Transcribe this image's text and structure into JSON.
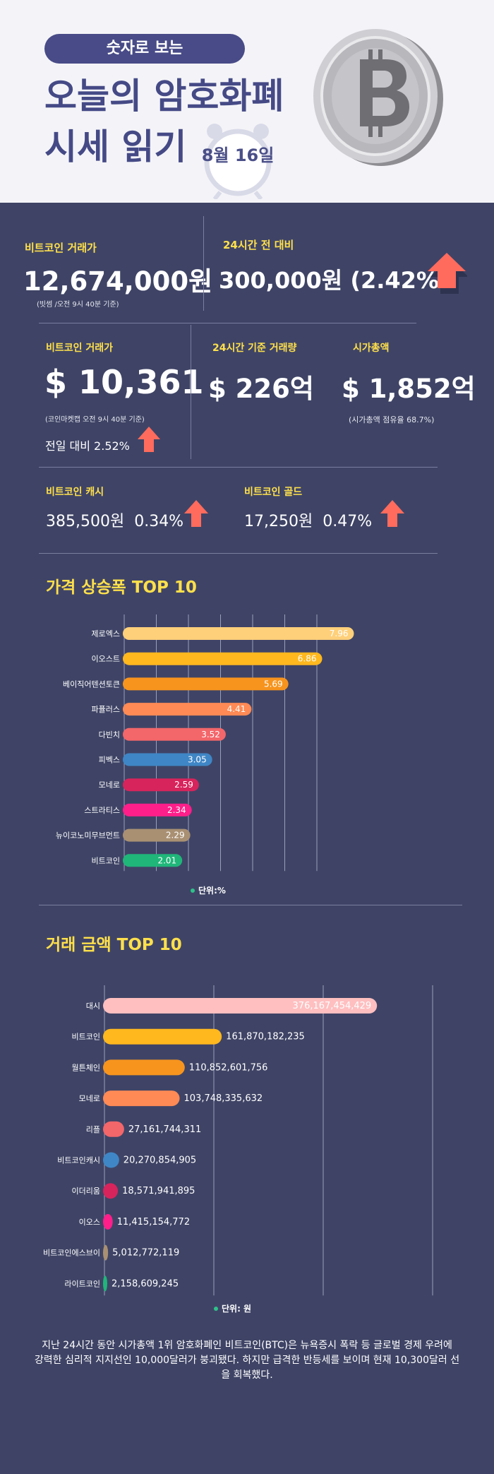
{
  "header": {
    "pill": "숫자로 보는",
    "title_line1": "오늘의 암호화폐",
    "title_line2": "시세 읽기",
    "date": "8월 16일"
  },
  "stats": {
    "krw_label": "비트코인 거래가",
    "krw_value": "12,674,000원",
    "krw_note": "(빗썸 /오전 9시 40분 기준)",
    "change_label": "24시간 전 대비",
    "change_value": "300,000원 (2.42%)",
    "usd_label": "비트코인 거래가",
    "usd_value": "$ 10,361",
    "usd_note": "(코인마켓캡 오전 9시 40분 기준)",
    "usd_change": "전일 대비 2.52%",
    "volume_label": "24시간 기준 거래량",
    "volume_value": "$ 226억",
    "mcap_label": "시가총액",
    "mcap_value": "$ 1,852억",
    "mcap_note": "(시가총액 점유율 68.7%)",
    "bch_label": "비트코인 캐시",
    "bch_value": "385,500원  0.34%",
    "btg_label": "비트코인 골드",
    "btg_value": "17,250원  0.47%"
  },
  "colors": {
    "accent": "#ffe04b",
    "up_arrow": "#ff6b5d",
    "bg": "#3f4466"
  },
  "chart_data": [
    {
      "type": "bar",
      "title": "가격 상승폭 TOP 10",
      "unit": "단위:%",
      "categories": [
        "제로엑스",
        "이오스트",
        "베이직어텐션토큰",
        "파퓰러스",
        "다빈치",
        "피벡스",
        "모네로",
        "스트라티스",
        "뉴이코노미무브먼트",
        "비트코인"
      ],
      "values": [
        7.96,
        6.86,
        5.69,
        4.41,
        3.52,
        3.05,
        2.59,
        2.34,
        2.29,
        2.01
      ],
      "labels": [
        "7.96",
        "6.86",
        "5.69",
        "4.41",
        "3.52",
        "3.05",
        "2.59",
        "2.34",
        "2.29",
        "2.01"
      ],
      "colors": [
        "#ffd07a",
        "#ffb81e",
        "#f7941d",
        "#ff8a55",
        "#f3666a",
        "#3f86c6",
        "#d7245c",
        "#ff1f8a",
        "#a99073",
        "#20b67a"
      ],
      "xlim": [
        0,
        9
      ],
      "grid": true
    },
    {
      "type": "bar",
      "title": "거래 금액 TOP 10",
      "unit": "단위: 원",
      "categories": [
        "대시",
        "비트코인",
        "월튼체인",
        "모네로",
        "리플",
        "비트코인캐시",
        "이더리움",
        "이오스",
        "비트코인에스브이",
        "라이트코인"
      ],
      "values": [
        376167454429,
        161870182235,
        110852601756,
        103748335632,
        27161744311,
        20270854905,
        18571941895,
        11415154772,
        5012772119,
        2158609245
      ],
      "labels": [
        "376,167,454,429",
        "161,870,182,235",
        "110,852,601,756",
        "103,748,335,632",
        "27,161,744,311",
        "20,270,854,905",
        "18,571,941,895",
        "11,415,154,772",
        "5,012,772,119",
        "2,158,609,245"
      ],
      "colors": [
        "#ffbfc0",
        "#ffb81e",
        "#f7941d",
        "#ff8a55",
        "#f3666a",
        "#3f86c6",
        "#d7245c",
        "#ff1f8a",
        "#a99073",
        "#20b67a"
      ],
      "xlim": [
        0,
        450000000000
      ],
      "grid": true
    }
  ],
  "footer": {
    "line1": "지난 24시간 동안 시가총액 1위 암호화폐인 비트코인(BTC)은 뉴욕증시 폭락 등 글로벌 경제 우려에",
    "line2": "강력한 심리적 지지선인 10,000달러가 붕괴됐다. 하지만 급격한 반등세를 보이며 현재 10,300달러 선",
    "line3": "을 회복했다."
  }
}
